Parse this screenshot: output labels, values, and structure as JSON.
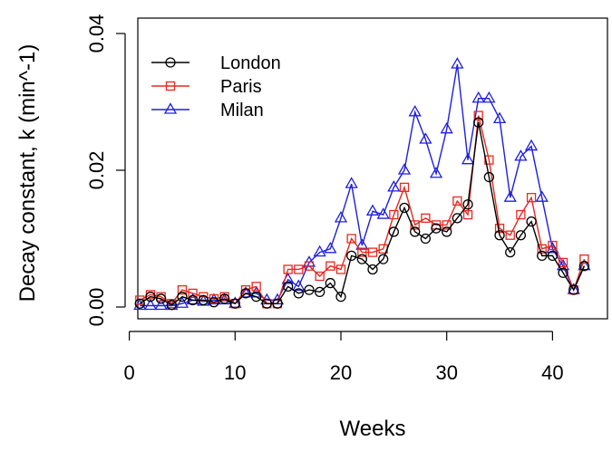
{
  "chart_data": {
    "type": "line",
    "title": "",
    "xlabel": "Weeks",
    "ylabel": "Decay constant, k (min^-1)",
    "xlim": [
      0,
      43
    ],
    "ylim": [
      0,
      0.04
    ],
    "x_ticks": [
      0,
      10,
      20,
      30,
      40
    ],
    "x_tick_labels": [
      "0",
      "10",
      "20",
      "30",
      "40"
    ],
    "y_ticks": [
      0,
      0.02,
      0.04
    ],
    "y_tick_labels": [
      "0.00",
      "0.02",
      "0.04"
    ],
    "grid": false,
    "legend_position": "top-left",
    "x": [
      1,
      2,
      3,
      4,
      5,
      6,
      7,
      8,
      9,
      10,
      11,
      12,
      13,
      14,
      15,
      16,
      17,
      18,
      19,
      20,
      21,
      22,
      23,
      24,
      25,
      26,
      27,
      28,
      29,
      30,
      31,
      32,
      33,
      34,
      35,
      36,
      37,
      38,
      39,
      40,
      41,
      42,
      43
    ],
    "series": [
      {
        "name": "London",
        "color": "#000000",
        "marker": "circle",
        "values": [
          0.0005,
          0.0015,
          0.0012,
          0.0003,
          0.0015,
          0.001,
          0.001,
          0.0007,
          0.0012,
          0.0005,
          0.002,
          0.0015,
          0.0005,
          0.0005,
          0.003,
          0.002,
          0.0025,
          0.0022,
          0.0035,
          0.0015,
          0.0075,
          0.007,
          0.0055,
          0.007,
          0.011,
          0.0145,
          0.011,
          0.01,
          0.0115,
          0.011,
          0.013,
          0.015,
          0.027,
          0.019,
          0.0105,
          0.008,
          0.0105,
          0.0125,
          0.0075,
          0.0075,
          0.005,
          0.0025,
          0.006
        ]
      },
      {
        "name": "Paris",
        "color": "#e8281e",
        "marker": "square",
        "values": [
          0.001,
          0.0018,
          0.0015,
          0.0005,
          0.0025,
          0.002,
          0.0015,
          0.0012,
          0.0015,
          0.0005,
          0.0025,
          0.003,
          0.0005,
          0.0005,
          0.0055,
          0.0055,
          0.006,
          0.0045,
          0.006,
          0.0055,
          0.01,
          0.008,
          0.008,
          0.0085,
          0.0135,
          0.0175,
          0.012,
          0.013,
          0.012,
          0.012,
          0.0155,
          0.0135,
          0.028,
          0.0215,
          0.0115,
          0.0105,
          0.0135,
          0.016,
          0.0085,
          0.009,
          0.0065,
          0.0025,
          0.007
        ]
      },
      {
        "name": "Milan",
        "color": "#1e1ee0",
        "marker": "triangle",
        "values": [
          0.0002,
          0.0002,
          0.0002,
          0.0002,
          0.0005,
          0.001,
          0.0008,
          0.001,
          0.001,
          0.0005,
          0.002,
          0.002,
          0.001,
          0.001,
          0.004,
          0.003,
          0.0065,
          0.008,
          0.0085,
          0.013,
          0.018,
          0.009,
          0.014,
          0.0135,
          0.0175,
          0.02,
          0.0285,
          0.0245,
          0.0195,
          0.026,
          0.0355,
          0.0215,
          0.0305,
          0.0305,
          0.0275,
          0.016,
          0.022,
          0.0235,
          0.016,
          0.0085,
          0.006,
          0.0025,
          0.006
        ]
      }
    ]
  }
}
